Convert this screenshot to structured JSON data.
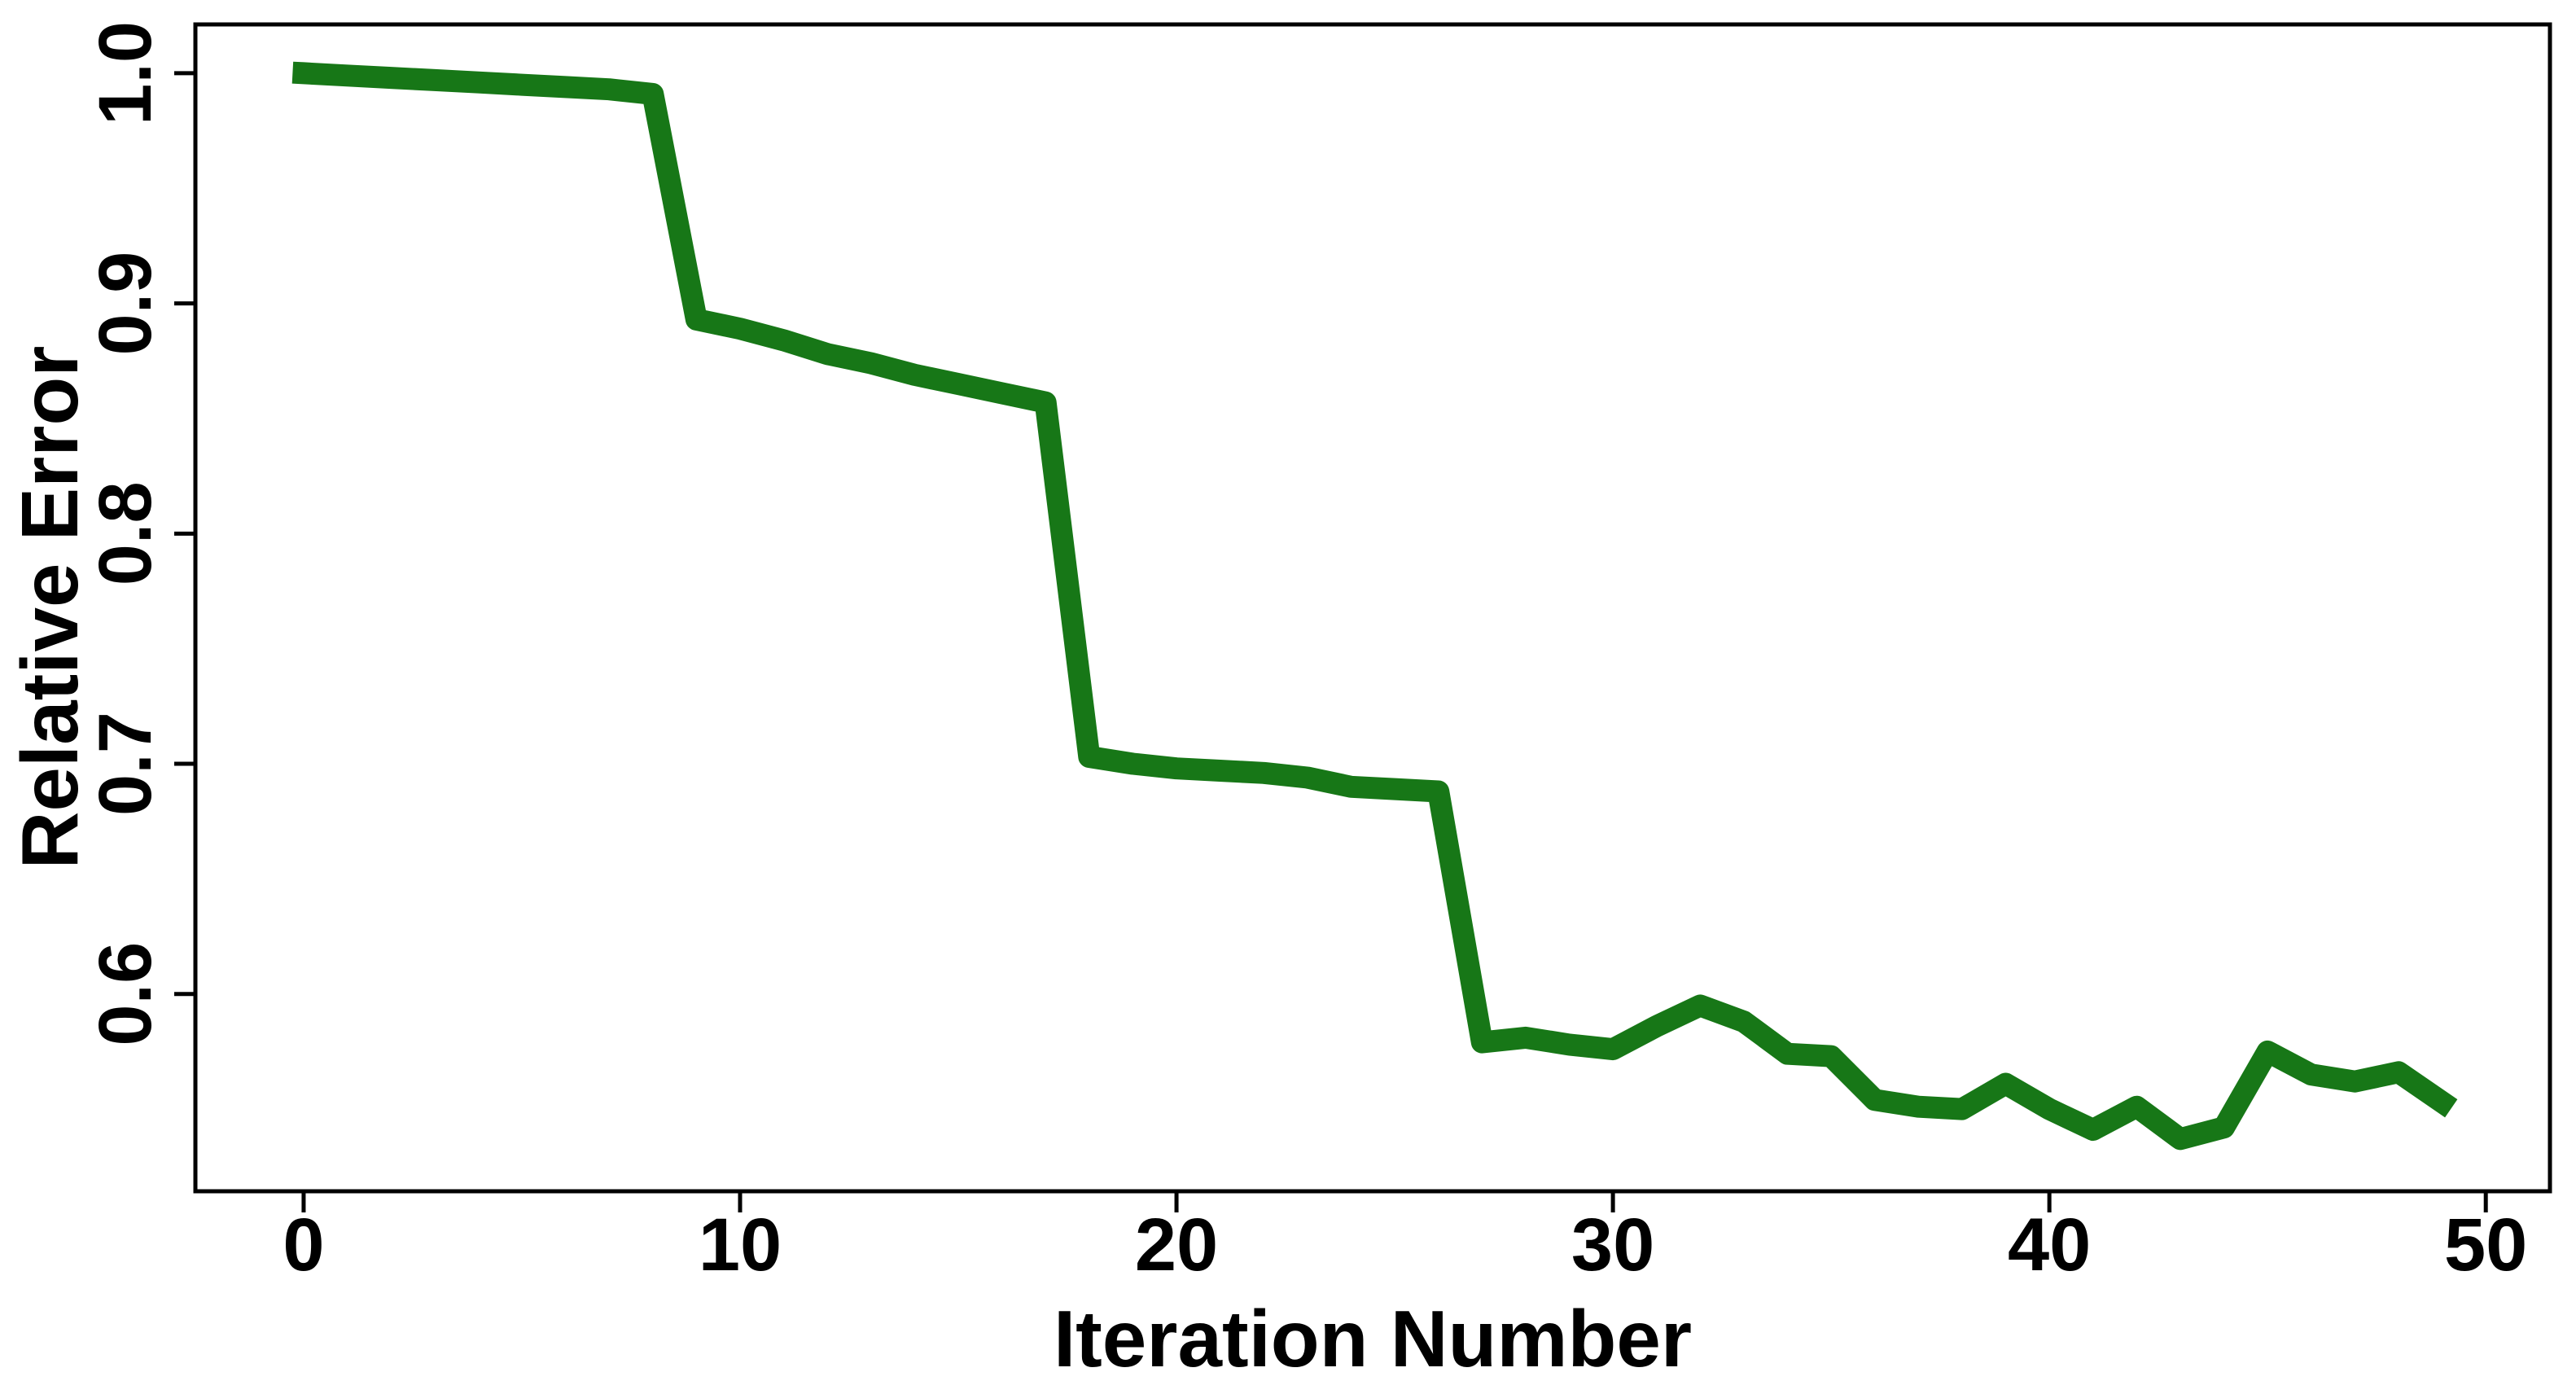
{
  "chart_data": {
    "type": "line",
    "title": "",
    "xlabel": "Iteration Number",
    "ylabel": "Relative Error",
    "x": [
      0,
      1,
      2,
      3,
      4,
      5,
      6,
      7,
      8,
      9,
      10,
      11,
      12,
      13,
      14,
      15,
      16,
      17,
      18,
      19,
      20,
      21,
      22,
      23,
      24,
      25,
      26,
      27,
      28,
      29,
      30,
      31,
      32,
      33,
      34,
      35,
      36,
      37,
      38,
      39,
      40,
      41,
      42,
      43,
      44,
      45,
      46,
      47,
      48,
      49
    ],
    "values": [
      1.0,
      0.999,
      0.998,
      0.997,
      0.996,
      0.995,
      0.994,
      0.993,
      0.991,
      0.893,
      0.889,
      0.884,
      0.878,
      0.874,
      0.869,
      0.865,
      0.861,
      0.857,
      0.703,
      0.7,
      0.698,
      0.697,
      0.696,
      0.694,
      0.69,
      0.689,
      0.688,
      0.579,
      0.581,
      0.578,
      0.576,
      0.586,
      0.595,
      0.588,
      0.574,
      0.573,
      0.554,
      0.551,
      0.55,
      0.561,
      0.55,
      0.541,
      0.551,
      0.537,
      0.542,
      0.575,
      0.565,
      0.562,
      0.566,
      0.553
    ],
    "series_name": "Relative Error",
    "line_color": "#177717",
    "xlim": [
      -2.48,
      51.47
    ],
    "ylim": [
      0.5143,
      1.0212
    ],
    "x_ticks": [
      0,
      10,
      20,
      30,
      40,
      50
    ],
    "x_tick_labels": [
      "0",
      "10",
      "20",
      "30",
      "40",
      "50"
    ],
    "y_ticks": [
      1.0,
      0.9,
      0.8,
      0.7,
      0.6
    ],
    "y_tick_labels": [
      "1.0",
      "0.9",
      "0.8",
      "0.7",
      "0.6"
    ],
    "grid": "off",
    "legend": "none"
  }
}
